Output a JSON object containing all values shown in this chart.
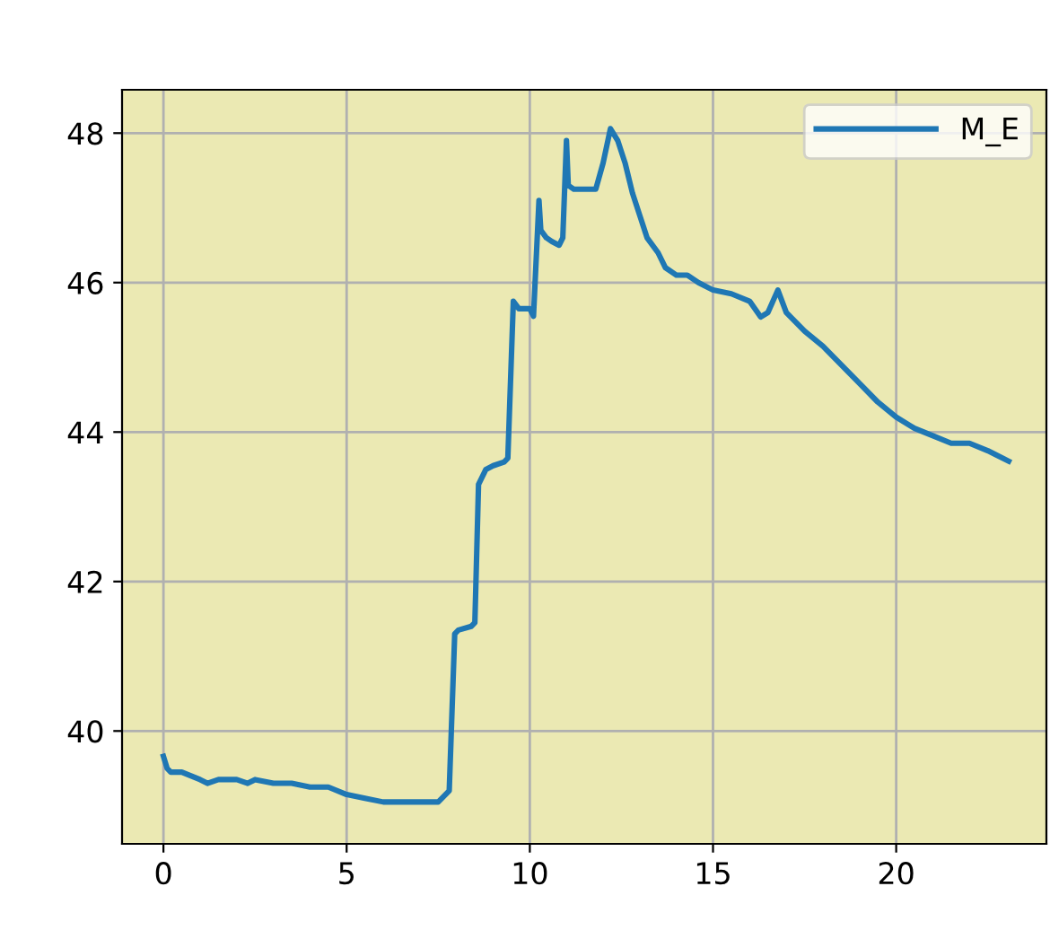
{
  "chart_data": {
    "type": "line",
    "x": [
      0,
      0.1,
      0.2,
      0.5,
      1.0,
      1.2,
      1.5,
      2.0,
      2.3,
      2.5,
      3.0,
      3.5,
      4.0,
      4.5,
      5.0,
      5.5,
      6.0,
      6.5,
      7.0,
      7.5,
      7.8,
      7.95,
      8.05,
      8.4,
      8.5,
      8.6,
      8.75,
      8.8,
      9.0,
      9.3,
      9.4,
      9.55,
      9.7,
      10.0,
      10.1,
      10.25,
      10.3,
      10.45,
      10.6,
      10.8,
      10.9,
      11.0,
      11.05,
      11.2,
      11.5,
      11.8,
      12.0,
      12.2,
      12.4,
      12.6,
      12.8,
      13.0,
      13.2,
      13.5,
      13.7,
      14.0,
      14.3,
      14.6,
      15.0,
      15.5,
      16.0,
      16.3,
      16.5,
      16.77,
      17.0,
      17.5,
      18.0,
      18.5,
      19.0,
      19.5,
      20.0,
      20.5,
      21.0,
      21.5,
      22.0,
      22.5,
      23.07
    ],
    "series": [
      {
        "name": "M_E",
        "color": "#1f77b4",
        "values": [
          39.66,
          39.5,
          39.45,
          39.45,
          39.35,
          39.3,
          39.35,
          39.35,
          39.3,
          39.35,
          39.3,
          39.3,
          39.25,
          39.25,
          39.15,
          39.1,
          39.05,
          39.05,
          39.05,
          39.05,
          39.2,
          41.3,
          41.35,
          41.4,
          41.45,
          43.3,
          43.45,
          43.5,
          43.55,
          43.6,
          43.65,
          45.75,
          45.65,
          45.65,
          45.55,
          47.1,
          46.7,
          46.6,
          46.55,
          46.5,
          46.6,
          47.9,
          47.3,
          47.25,
          47.25,
          47.25,
          47.6,
          48.06,
          47.9,
          47.6,
          47.2,
          46.9,
          46.6,
          46.4,
          46.2,
          46.1,
          46.1,
          46.0,
          45.9,
          45.85,
          45.75,
          45.54,
          45.6,
          45.9,
          45.6,
          45.35,
          45.15,
          44.9,
          44.65,
          44.4,
          44.2,
          44.05,
          43.95,
          43.85,
          43.85,
          43.75,
          43.61
        ]
      }
    ],
    "xlim": [
      -1.13,
      24.1
    ],
    "ylim": [
      38.49,
      48.58
    ],
    "xticks": [
      0,
      5,
      10,
      15,
      20
    ],
    "yticks": [
      40,
      42,
      44,
      46,
      48
    ],
    "grid": true,
    "legend": "top right"
  }
}
